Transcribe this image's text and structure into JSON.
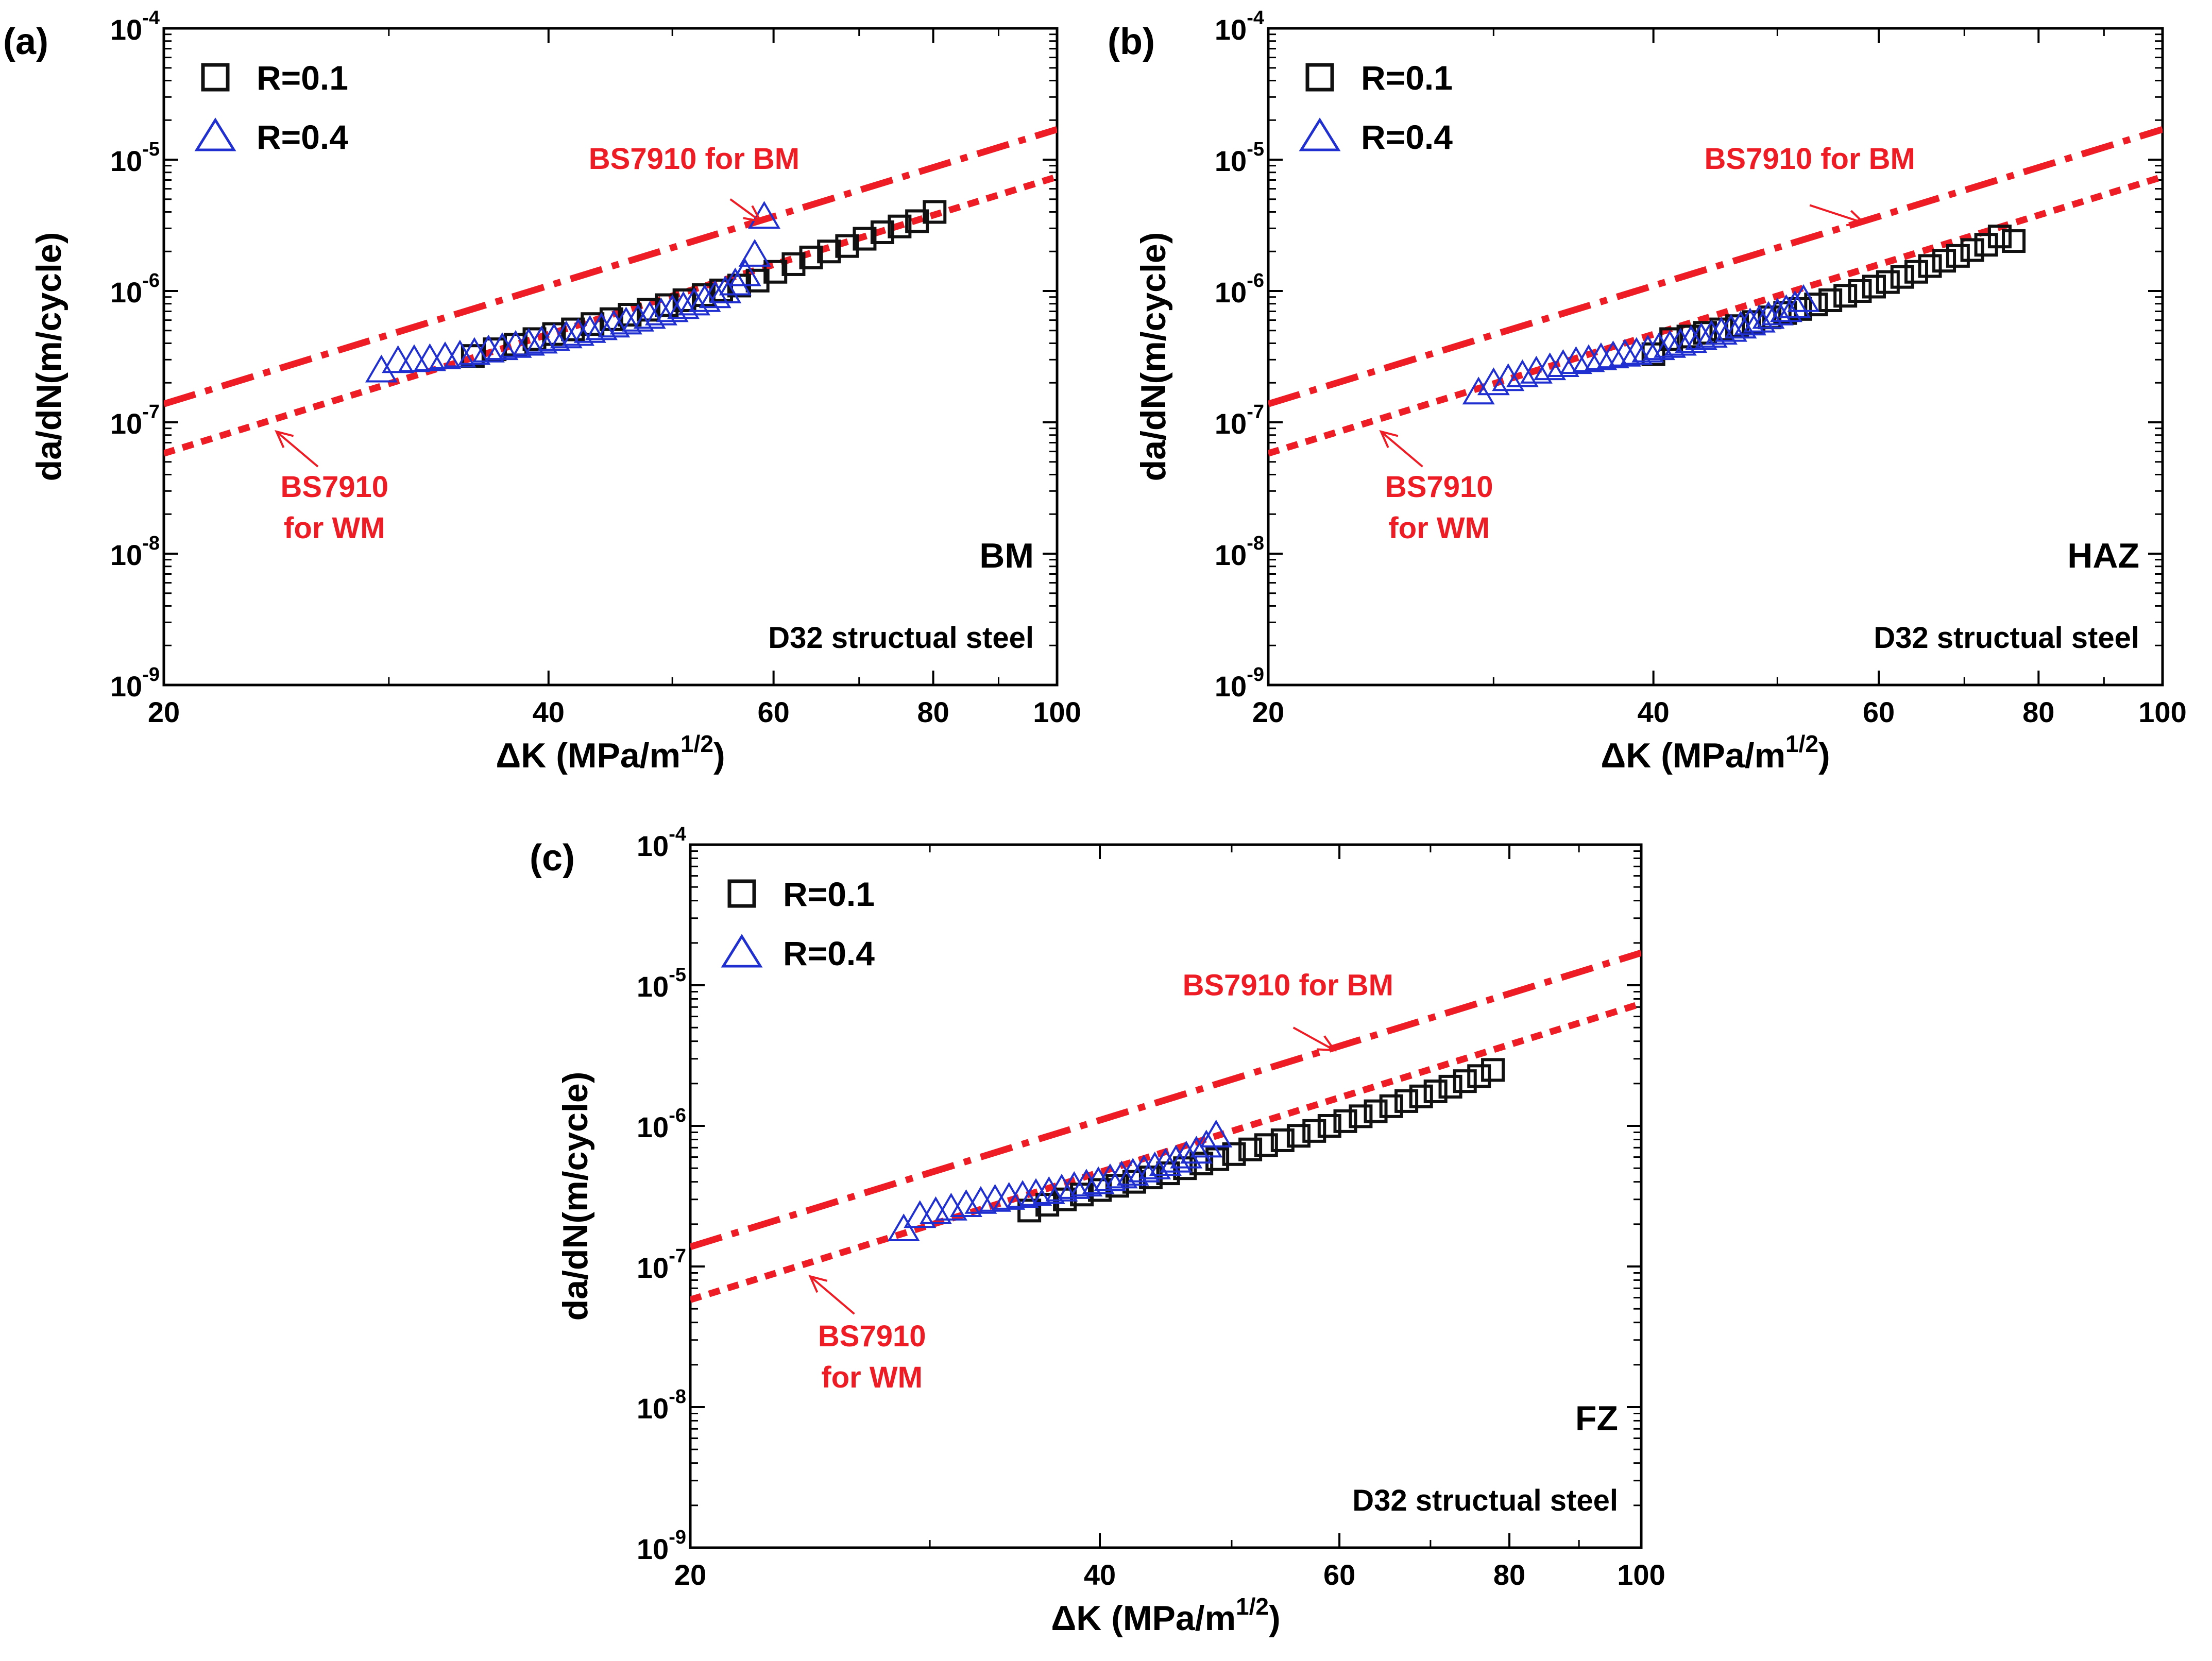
{
  "colors": {
    "bm_line": "#ee1c24",
    "r01": "#111111",
    "r04": "#1f2fd0",
    "axis": "#000000"
  },
  "chart_data": [
    {
      "type": "scatter",
      "panel_label": "(a)",
      "region": "BM",
      "material": "D32 structual steel",
      "xlabel": "ΔK (MPa/m",
      "xlabel_sup": "1/2",
      "xlabel_close": ")",
      "ylabel": "da/dN(m/cycle)",
      "xscale": "log",
      "yscale": "log",
      "xlim": [
        20,
        100
      ],
      "ylim": [
        1e-09,
        0.0001
      ],
      "xticks": [
        {
          "v": 20,
          "label": "20"
        },
        {
          "v": 40,
          "label": "40"
        },
        {
          "v": 60,
          "label": "60"
        },
        {
          "v": 80,
          "label": "80"
        },
        {
          "v": 100,
          "label": "100"
        }
      ],
      "yticks": [
        {
          "v": 1e-09,
          "mant": "10",
          "exp": "-9"
        },
        {
          "v": 1e-08,
          "mant": "10",
          "exp": "-8"
        },
        {
          "v": 1e-07,
          "mant": "10",
          "exp": "-7"
        },
        {
          "v": 1e-06,
          "mant": "10",
          "exp": "-6"
        },
        {
          "v": 1e-05,
          "mant": "10",
          "exp": "-5"
        },
        {
          "v": 0.0001,
          "mant": "10",
          "exp": "-4"
        }
      ],
      "legend": [
        {
          "label": "R=0.1",
          "marker": "square"
        },
        {
          "label": "R=0.4",
          "marker": "triangle"
        }
      ],
      "reference_lines": [
        {
          "name": "BS7910 for BM",
          "style": "dashdot",
          "x": [
            20,
            100
          ],
          "y": [
            1.38e-07,
            1.7e-05
          ],
          "label_lines": [
            "BS7910 for BM"
          ],
          "label_at": {
            "x": 52,
            "y": 8.5e-06
          },
          "arrow_from": {
            "x": 55.5,
            "y": 5e-06
          },
          "arrow_to": {
            "x": 58.6,
            "y": 3.4e-06
          }
        },
        {
          "name": "BS7910 for WM",
          "style": "dot",
          "x": [
            20,
            100
          ],
          "y": [
            5.8e-08,
            7.4e-06
          ],
          "label_lines": [
            "BS7910",
            "for WM"
          ],
          "label_at": {
            "x": 27.2,
            "y": 2.7e-08
          },
          "arrow_from": {
            "x": 26.4,
            "y": 4.6e-08
          },
          "arrow_to": {
            "x": 24.5,
            "y": 8.5e-08
          }
        }
      ],
      "series": [
        {
          "name": "R=0.1",
          "marker": "square",
          "x": [
            34.9,
            36.3,
            37.7,
            39.0,
            40.4,
            41.8,
            43.3,
            44.8,
            46.3,
            47.9,
            49.5,
            51.1,
            52.9,
            54.6,
            56.4,
            58.3,
            60.2,
            62.2,
            64.2,
            66.3,
            68.5,
            70.7,
            73.0,
            75.3,
            77.7,
            80.2
          ],
          "y": [
            3.2e-07,
            3.6e-07,
            3.9e-07,
            4.3e-07,
            4.7e-07,
            5.1e-07,
            5.6e-07,
            6.1e-07,
            6.6e-07,
            7.2e-07,
            7.8e-07,
            8.5e-07,
            9.3e-07,
            1.01e-06,
            1.1e-06,
            1.2e-06,
            1.4e-06,
            1.6e-06,
            1.8e-06,
            2e-06,
            2.2e-06,
            2.5e-06,
            2.8e-06,
            3.1e-06,
            3.4e-06,
            4e-06
          ]
        },
        {
          "name": "R=0.4",
          "marker": "triangle",
          "x": [
            29.6,
            30.5,
            31.4,
            32.3,
            33.2,
            34.1,
            35.0,
            35.9,
            36.8,
            37.7,
            38.6,
            39.5,
            40.4,
            41.3,
            42.2,
            43.1,
            44.0,
            45.0,
            46.0,
            47.0,
            48.0,
            49.0,
            50.0,
            51.0,
            52.0,
            53.0,
            54.0,
            55.0,
            56.0,
            57.0,
            58.0,
            59.0
          ],
          "y": [
            2.5e-07,
            2.95e-07,
            3e-07,
            3.05e-07,
            3.15e-07,
            3.25e-07,
            3.4e-07,
            3.55e-07,
            3.7e-07,
            3.85e-07,
            4e-07,
            4.15e-07,
            4.35e-07,
            4.55e-07,
            4.75e-07,
            5e-07,
            5.25e-07,
            5.5e-07,
            5.8e-07,
            6.1e-07,
            6.4e-07,
            6.8e-07,
            7.2e-07,
            7.6e-07,
            8.1e-07,
            8.6e-07,
            9.2e-07,
            1e-06,
            1.15e-06,
            1.35e-06,
            1.9e-06,
            3.7e-06
          ]
        }
      ]
    },
    {
      "type": "scatter",
      "panel_label": "(b)",
      "region": "HAZ",
      "material": "D32 structual steel",
      "xlabel": "ΔK (MPa/m",
      "xlabel_sup": "1/2",
      "xlabel_close": ")",
      "ylabel": "da/dN(m/cycle)",
      "xscale": "log",
      "yscale": "log",
      "xlim": [
        20,
        100
      ],
      "ylim": [
        1e-09,
        0.0001
      ],
      "xticks": [
        {
          "v": 20,
          "label": "20"
        },
        {
          "v": 40,
          "label": "40"
        },
        {
          "v": 60,
          "label": "60"
        },
        {
          "v": 80,
          "label": "80"
        },
        {
          "v": 100,
          "label": "100"
        }
      ],
      "yticks": [
        {
          "v": 1e-09,
          "mant": "10",
          "exp": "-9"
        },
        {
          "v": 1e-08,
          "mant": "10",
          "exp": "-8"
        },
        {
          "v": 1e-07,
          "mant": "10",
          "exp": "-7"
        },
        {
          "v": 1e-06,
          "mant": "10",
          "exp": "-6"
        },
        {
          "v": 1e-05,
          "mant": "10",
          "exp": "-5"
        },
        {
          "v": 0.0001,
          "mant": "10",
          "exp": "-4"
        }
      ],
      "legend": [
        {
          "label": "R=0.1",
          "marker": "square"
        },
        {
          "label": "R=0.4",
          "marker": "triangle"
        }
      ],
      "reference_lines": [
        {
          "name": "BS7910 for BM",
          "style": "dashdot",
          "x": [
            20,
            100
          ],
          "y": [
            1.38e-07,
            1.7e-05
          ],
          "label_lines": [
            "BS7910 for BM"
          ],
          "label_at": {
            "x": 53,
            "y": 8.5e-06
          },
          "arrow_from": {
            "x": 53,
            "y": 4.5e-06
          },
          "arrow_to": {
            "x": 58.4,
            "y": 3.3e-06
          }
        },
        {
          "name": "BS7910 for WM",
          "style": "dot",
          "x": [
            20,
            100
          ],
          "y": [
            5.8e-08,
            7.4e-06
          ],
          "label_lines": [
            "BS7910",
            "for WM"
          ],
          "label_at": {
            "x": 27.2,
            "y": 2.7e-08
          },
          "arrow_from": {
            "x": 26.4,
            "y": 4.6e-08
          },
          "arrow_to": {
            "x": 24.5,
            "y": 8.5e-08
          }
        }
      ],
      "series": [
        {
          "name": "R=0.1",
          "marker": "square",
          "x": [
            40.0,
            41.3,
            42.6,
            43.9,
            45.2,
            46.5,
            47.9,
            49.3,
            50.7,
            52.1,
            53.6,
            55.0,
            56.5,
            58.0,
            59.5,
            61.0,
            62.6,
            64.2,
            65.8,
            67.5,
            69.2,
            71.0,
            72.8,
            74.6,
            76.5
          ],
          "y": [
            3.3e-07,
            4.3e-07,
            4.5e-07,
            4.8e-07,
            5.1e-07,
            5.4e-07,
            5.8e-07,
            6.3e-07,
            6.8e-07,
            7.3e-07,
            7.9e-07,
            8.5e-07,
            9.2e-07,
            1e-06,
            1.08e-06,
            1.17e-06,
            1.28e-06,
            1.4e-06,
            1.55e-06,
            1.7e-06,
            1.85e-06,
            2.05e-06,
            2.25e-06,
            2.6e-06,
            2.4e-06
          ]
        },
        {
          "name": "R=0.4",
          "marker": "triangle",
          "x": [
            29.2,
            30.0,
            30.8,
            31.6,
            32.4,
            33.2,
            34.0,
            34.8,
            35.6,
            36.4,
            37.2,
            38.0,
            38.8,
            39.6,
            40.4,
            41.2,
            42.0,
            42.8,
            43.6,
            44.4,
            45.2,
            46.0,
            46.8,
            47.6,
            48.4,
            49.2,
            50.0,
            50.8,
            51.6,
            52.4
          ],
          "y": [
            1.7e-07,
            2e-07,
            2.15e-07,
            2.3e-07,
            2.45e-07,
            2.6e-07,
            2.75e-07,
            2.9e-07,
            3e-07,
            3.1e-07,
            3.2e-07,
            3.3e-07,
            3.4e-07,
            3.55e-07,
            3.7e-07,
            3.85e-07,
            4e-07,
            4.2e-07,
            4.4e-07,
            4.6e-07,
            4.85e-07,
            5.1e-07,
            5.4e-07,
            5.7e-07,
            6e-07,
            6.4e-07,
            6.8e-07,
            7.2e-07,
            7.7e-07,
            8.6e-07
          ]
        }
      ]
    },
    {
      "type": "scatter",
      "panel_label": "(c)",
      "region": "FZ",
      "material": "D32 structual steel",
      "xlabel": "ΔK (MPa/m",
      "xlabel_sup": "1/2",
      "xlabel_close": ")",
      "ylabel": "da/dN(m/cycle)",
      "xscale": "log",
      "yscale": "log",
      "xlim": [
        20,
        100
      ],
      "ylim": [
        1e-09,
        0.0001
      ],
      "xticks": [
        {
          "v": 20,
          "label": "20"
        },
        {
          "v": 40,
          "label": "40"
        },
        {
          "v": 60,
          "label": "60"
        },
        {
          "v": 80,
          "label": "80"
        },
        {
          "v": 100,
          "label": "100"
        }
      ],
      "yticks": [
        {
          "v": 1e-09,
          "mant": "10",
          "exp": "-9"
        },
        {
          "v": 1e-08,
          "mant": "10",
          "exp": "-8"
        },
        {
          "v": 1e-07,
          "mant": "10",
          "exp": "-7"
        },
        {
          "v": 1e-06,
          "mant": "10",
          "exp": "-6"
        },
        {
          "v": 1e-05,
          "mant": "10",
          "exp": "-5"
        },
        {
          "v": 0.0001,
          "mant": "10",
          "exp": "-4"
        }
      ],
      "legend": [
        {
          "label": "R=0.1",
          "marker": "square"
        },
        {
          "label": "R=0.4",
          "marker": "triangle"
        }
      ],
      "reference_lines": [
        {
          "name": "BS7910 for BM",
          "style": "dashdot",
          "x": [
            20,
            100
          ],
          "y": [
            1.38e-07,
            1.7e-05
          ],
          "label_lines": [
            "BS7910 for BM"
          ],
          "label_at": {
            "x": 55,
            "y": 8.5e-06
          },
          "arrow_from": {
            "x": 55.5,
            "y": 5e-06
          },
          "arrow_to": {
            "x": 59.5,
            "y": 3.45e-06
          }
        },
        {
          "name": "BS7910 for WM",
          "style": "dot",
          "x": [
            20,
            100
          ],
          "y": [
            5.8e-08,
            7.4e-06
          ],
          "label_lines": [
            "BS7910",
            "for WM"
          ],
          "label_at": {
            "x": 27.2,
            "y": 2.7e-08
          },
          "arrow_from": {
            "x": 26.4,
            "y": 4.6e-08
          },
          "arrow_to": {
            "x": 24.5,
            "y": 8.5e-08
          }
        }
      ],
      "series": [
        {
          "name": "R=0.1",
          "marker": "square",
          "x": [
            35.5,
            36.6,
            37.7,
            38.8,
            40.0,
            41.2,
            42.4,
            43.6,
            44.9,
            46.2,
            47.5,
            48.8,
            50.2,
            51.6,
            53.0,
            54.5,
            56.0,
            57.5,
            59.0,
            60.6,
            62.2,
            63.8,
            65.5,
            67.2,
            68.9,
            70.6,
            72.4,
            74.2,
            76.0,
            77.8
          ],
          "y": [
            2.5e-07,
            2.75e-07,
            3e-07,
            3.25e-07,
            3.5e-07,
            3.75e-07,
            4e-07,
            4.3e-07,
            4.6e-07,
            5e-07,
            5.4e-07,
            5.8e-07,
            6.3e-07,
            6.8e-07,
            7.3e-07,
            7.9e-07,
            8.5e-07,
            9.2e-07,
            1e-06,
            1.08e-06,
            1.17e-06,
            1.27e-06,
            1.38e-06,
            1.5e-06,
            1.62e-06,
            1.76e-06,
            1.9e-06,
            2.08e-06,
            2.26e-06,
            2.5e-06
          ]
        },
        {
          "name": "R=0.4",
          "marker": "triangle",
          "x": [
            28.7,
            29.5,
            30.3,
            31.1,
            31.9,
            32.7,
            33.5,
            34.3,
            35.1,
            35.9,
            36.7,
            37.5,
            38.3,
            39.1,
            39.9,
            40.7,
            41.5,
            42.3,
            43.1,
            43.9,
            44.7,
            45.5,
            46.3,
            47.1,
            47.9,
            48.7
          ],
          "y": [
            1.85e-07,
            2.3e-07,
            2.45e-07,
            2.6e-07,
            2.75e-07,
            2.9e-07,
            3e-07,
            3.1e-07,
            3.2e-07,
            3.3e-07,
            3.4e-07,
            3.55e-07,
            3.7e-07,
            3.85e-07,
            4e-07,
            4.2e-07,
            4.4e-07,
            4.6e-07,
            4.85e-07,
            5.1e-07,
            5.4e-07,
            5.7e-07,
            6.1e-07,
            6.6e-07,
            7.3e-07,
            8.6e-07
          ]
        }
      ]
    }
  ]
}
